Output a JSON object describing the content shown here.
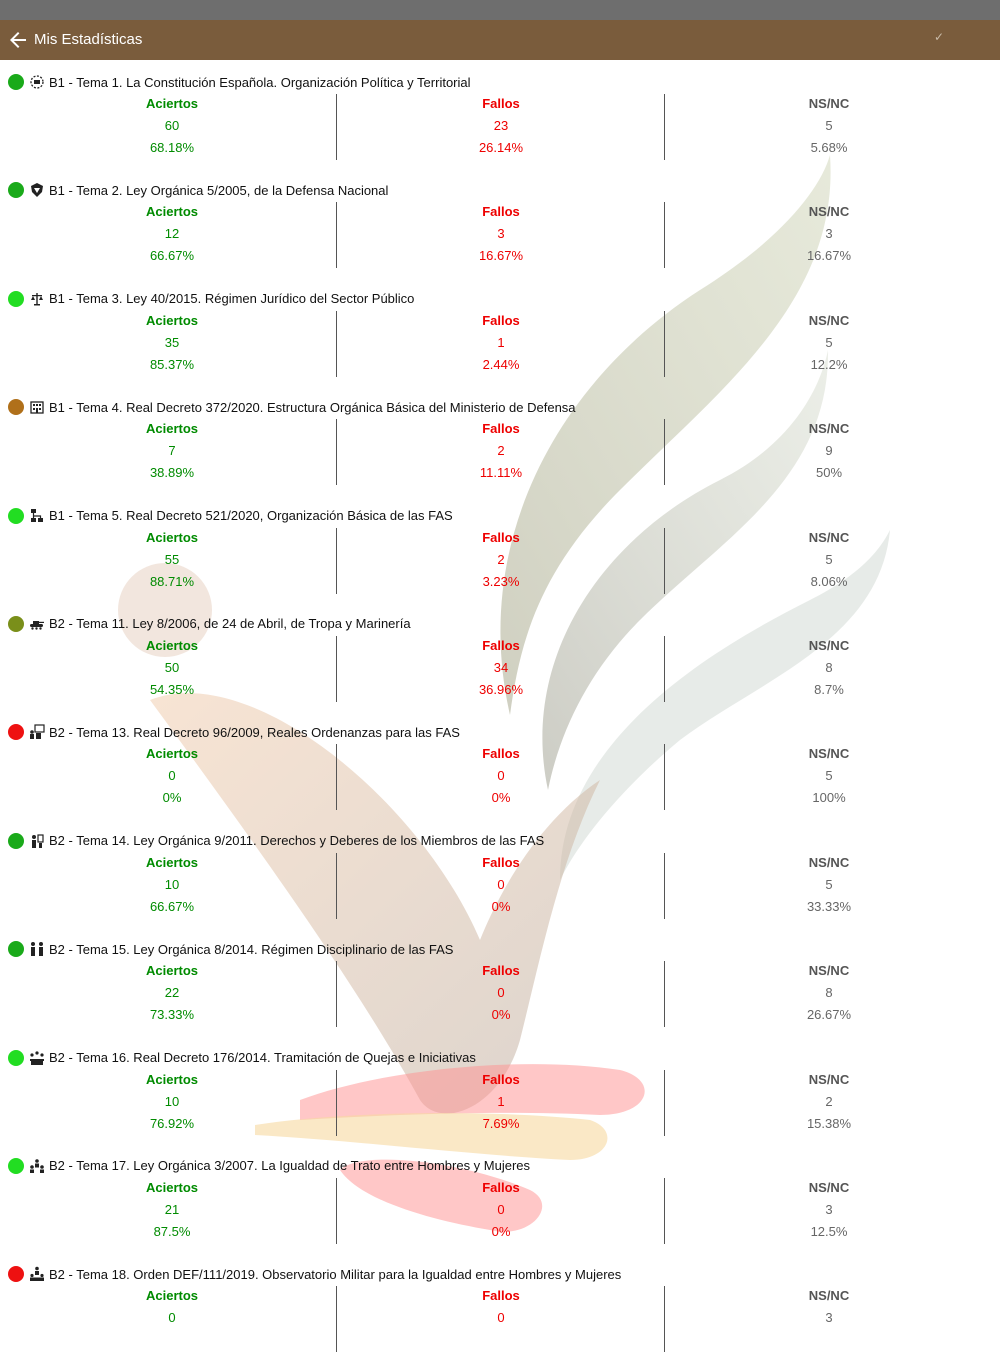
{
  "appbar": {
    "title": "Mis Estadísticas"
  },
  "labels": {
    "aciertos": "Aciertos",
    "fallos": "Fallos",
    "nsnc": "NS/NC"
  },
  "topics": [
    {
      "title": "B1 - Tema 1. La Constitución Española. Organización Política y Territorial",
      "dot": "#1aaa1a",
      "icon": "constitution-icon",
      "aciertos": "60",
      "aciertos_pct": "68.18%",
      "fallos": "23",
      "fallos_pct": "26.14%",
      "nsnc": "5",
      "nsnc_pct": "5.68%"
    },
    {
      "title": "B1 - Tema 2. Ley Orgánica 5/2005, de la Defensa Nacional",
      "dot": "#1aaa1a",
      "icon": "defense-shield-icon",
      "aciertos": "12",
      "aciertos_pct": "66.67%",
      "fallos": "3",
      "fallos_pct": "16.67%",
      "nsnc": "3",
      "nsnc_pct": "16.67%"
    },
    {
      "title": "B1 - Tema 3. Ley 40/2015. Régimen Jurídico del Sector Público",
      "dot": "#22dd22",
      "icon": "scales-icon",
      "aciertos": "35",
      "aciertos_pct": "85.37%",
      "fallos": "1",
      "fallos_pct": "2.44%",
      "nsnc": "5",
      "nsnc_pct": "12.2%"
    },
    {
      "title": "B1 - Tema 4. Real Decreto 372/2020. Estructura Orgánica Básica del Ministerio de Defensa",
      "dot": "#b0701a",
      "icon": "ministry-building-icon",
      "aciertos": "7",
      "aciertos_pct": "38.89%",
      "fallos": "2",
      "fallos_pct": "11.11%",
      "nsnc": "9",
      "nsnc_pct": "50%"
    },
    {
      "title": "B1 - Tema 5. Real Decreto 521/2020, Organización Básica de las FAS",
      "dot": "#22dd22",
      "icon": "org-chart-icon",
      "aciertos": "55",
      "aciertos_pct": "88.71%",
      "fallos": "2",
      "fallos_pct": "3.23%",
      "nsnc": "5",
      "nsnc_pct": "8.06%"
    },
    {
      "title": "B2 - Tema 11. Ley 8/2006, de 24 de Abril, de Tropa y Marinería",
      "dot": "#7a8f1a",
      "icon": "tank-icon",
      "aciertos": "50",
      "aciertos_pct": "54.35%",
      "fallos": "34",
      "fallos_pct": "36.96%",
      "nsnc": "8",
      "nsnc_pct": "8.7%"
    },
    {
      "title": "B2 - Tema 13. Real Decreto 96/2009, Reales Ordenanzas para las FAS",
      "dot": "#ee1111",
      "icon": "lectern-icon",
      "aciertos": "0",
      "aciertos_pct": "0%",
      "fallos": "0",
      "fallos_pct": "0%",
      "nsnc": "5",
      "nsnc_pct": "100%"
    },
    {
      "title": "B2 - Tema 14. Ley Orgánica 9/2011. Derechos y Deberes de los Miembros de las FAS",
      "dot": "#1aaa1a",
      "icon": "soldier-rights-icon",
      "aciertos": "10",
      "aciertos_pct": "66.67%",
      "fallos": "0",
      "fallos_pct": "0%",
      "nsnc": "5",
      "nsnc_pct": "33.33%"
    },
    {
      "title": "B2 - Tema 15. Ley Orgánica 8/2014. Régimen Disciplinario de las FAS",
      "dot": "#1aaa1a",
      "icon": "soldiers-pair-icon",
      "aciertos": "22",
      "aciertos_pct": "73.33%",
      "fallos": "0",
      "fallos_pct": "0%",
      "nsnc": "8",
      "nsnc_pct": "26.67%"
    },
    {
      "title": "B2 - Tema 16. Real Decreto 176/2014. Tramitación de Quejas e Iniciativas",
      "dot": "#22dd22",
      "icon": "meeting-icon",
      "aciertos": "10",
      "aciertos_pct": "76.92%",
      "fallos": "1",
      "fallos_pct": "7.69%",
      "nsnc": "2",
      "nsnc_pct": "15.38%"
    },
    {
      "title": "B2 - Tema 17. Ley Orgánica 3/2007. La Igualdad de Trato entre Hombres y Mujeres",
      "dot": "#22dd22",
      "icon": "equality-group-icon",
      "aciertos": "21",
      "aciertos_pct": "87.5%",
      "fallos": "0",
      "fallos_pct": "0%",
      "nsnc": "3",
      "nsnc_pct": "12.5%"
    },
    {
      "title": "B2 - Tema 18. Orden DEF/111/2019. Observatorio Militar para la Igualdad entre Hombres y Mujeres",
      "dot": "#ee1111",
      "icon": "observatory-group-icon",
      "aciertos": "0",
      "aciertos_pct": "",
      "fallos": "0",
      "fallos_pct": "",
      "nsnc": "3",
      "nsnc_pct": ""
    }
  ]
}
